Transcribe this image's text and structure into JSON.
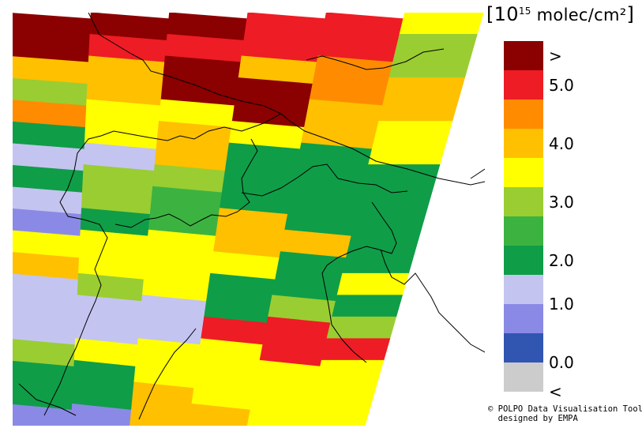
{
  "legend": {
    "title_prefix": "[10",
    "title_exponent": "15",
    "title_unit": " molec/cm²",
    "title_suffix": "]",
    "classes": [
      {
        "color": "#8b0000"
      },
      {
        "color": "#ee1c25"
      },
      {
        "color": "#ff8c00"
      },
      {
        "color": "#ffc000"
      },
      {
        "color": "#ffff00"
      },
      {
        "color": "#9acd32"
      },
      {
        "color": "#3cb341"
      },
      {
        "color": "#109d48"
      },
      {
        "color": "#c4c4f0"
      },
      {
        "color": "#8a8ae6"
      },
      {
        "color": "#3056b2"
      },
      {
        "color": "#cccccc"
      }
    ],
    "labels": [
      {
        "text": ">",
        "boundary": 0.5
      },
      {
        "text": "5.0",
        "boundary": 1.5
      },
      {
        "text": "4.0",
        "boundary": 3.5
      },
      {
        "text": "3.0",
        "boundary": 5.5
      },
      {
        "text": "2.0",
        "boundary": 7.5
      },
      {
        "text": "1.0",
        "boundary": 9
      },
      {
        "text": "0.0",
        "boundary": 11
      },
      {
        "text": "<",
        "boundary": 12
      }
    ]
  },
  "credit": {
    "line1": "© POLPO Data Visualisation Tool",
    "line2": "  designed by EMPA"
  },
  "map": {
    "coastline_color": "#000000",
    "swath_rows": [
      {
        "seg": [
          0,
          0,
          0,
          1,
          1,
          4
        ]
      },
      {
        "seg": [
          0,
          1,
          1,
          1,
          1,
          5
        ]
      },
      {
        "seg": [
          3,
          3,
          0,
          3,
          2,
          5
        ]
      },
      {
        "seg": [
          5,
          3,
          0,
          0,
          2,
          3
        ]
      },
      {
        "seg": [
          2,
          4,
          4,
          0,
          3,
          3
        ]
      },
      {
        "seg": [
          7,
          4,
          3,
          4,
          3,
          4
        ]
      },
      {
        "seg": [
          8,
          8,
          3,
          7,
          7,
          4
        ]
      },
      {
        "seg": [
          7,
          5,
          5,
          7,
          7,
          7
        ]
      },
      {
        "seg": [
          8,
          5,
          6,
          7,
          7,
          7
        ]
      },
      {
        "seg": [
          9,
          7,
          6,
          3,
          7,
          7
        ]
      },
      {
        "seg": [
          4,
          4,
          4,
          3,
          3,
          7
        ]
      },
      {
        "seg": [
          3,
          4,
          4,
          4,
          7,
          7
        ]
      },
      {
        "seg": [
          8,
          5,
          4,
          7,
          7,
          4
        ]
      },
      {
        "seg": [
          8,
          8,
          8,
          7,
          5,
          7
        ]
      },
      {
        "seg": [
          8,
          8,
          8,
          1,
          1,
          5
        ]
      },
      {
        "seg": [
          5,
          4,
          4,
          4,
          1,
          1
        ]
      },
      {
        "seg": [
          7,
          7,
          4,
          4,
          4,
          4
        ]
      },
      {
        "seg": [
          7,
          7,
          3,
          4,
          4,
          4
        ]
      },
      {
        "seg": [
          9,
          9,
          3,
          3,
          4,
          4
        ]
      }
    ]
  }
}
